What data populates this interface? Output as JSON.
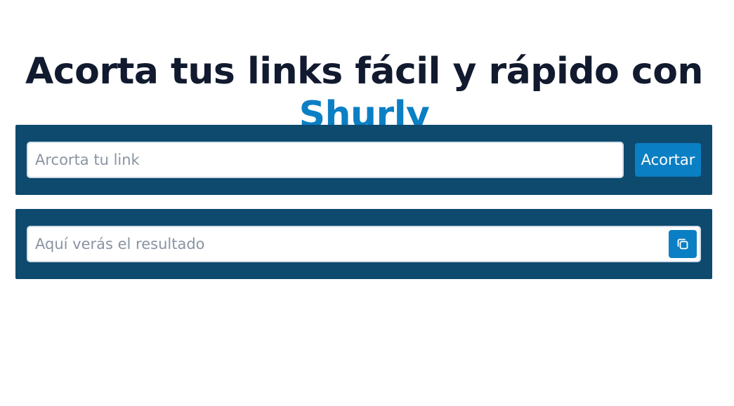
{
  "hero": {
    "title_prefix": "Acorta tus links fácil y rápido con",
    "brand": "Shurly"
  },
  "shortener": {
    "input_placeholder": "Arcorta tu link",
    "input_value": "",
    "button_label": "Acortar"
  },
  "result": {
    "input_placeholder": "Aquí verás el resultado",
    "input_value": "",
    "copy_icon": "copy-icon"
  },
  "colors": {
    "panel": "#0d4a6e",
    "accent": "#0b7fc4",
    "heading": "#111a2e"
  }
}
